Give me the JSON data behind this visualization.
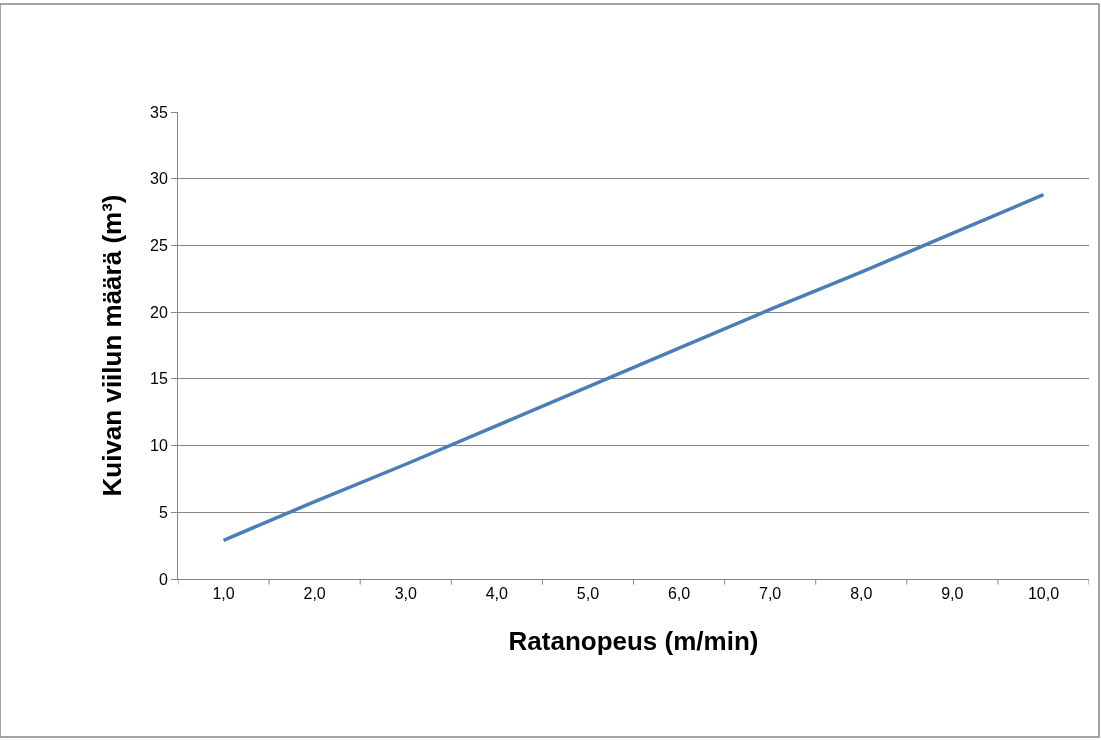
{
  "chart_data": {
    "type": "line",
    "xlabel": "Ratanopeus (m/min)",
    "ylabel": "Kuivan viilun määrä (m³)",
    "categories": [
      "1,0",
      "2,0",
      "3,0",
      "4,0",
      "5,0",
      "6,0",
      "7,0",
      "8,0",
      "9,0",
      "10,0"
    ],
    "series": [
      {
        "color": "#4a7ebb",
        "values": [
          2.9,
          5.8,
          8.6,
          11.5,
          14.4,
          17.3,
          20.2,
          23.0,
          25.9,
          28.8
        ]
      }
    ],
    "ylim": [
      0,
      35
    ],
    "yticks": [
      0,
      5,
      10,
      15,
      20,
      25,
      30,
      35
    ],
    "grid": "y",
    "marker": "none",
    "line_style": "solid"
  }
}
